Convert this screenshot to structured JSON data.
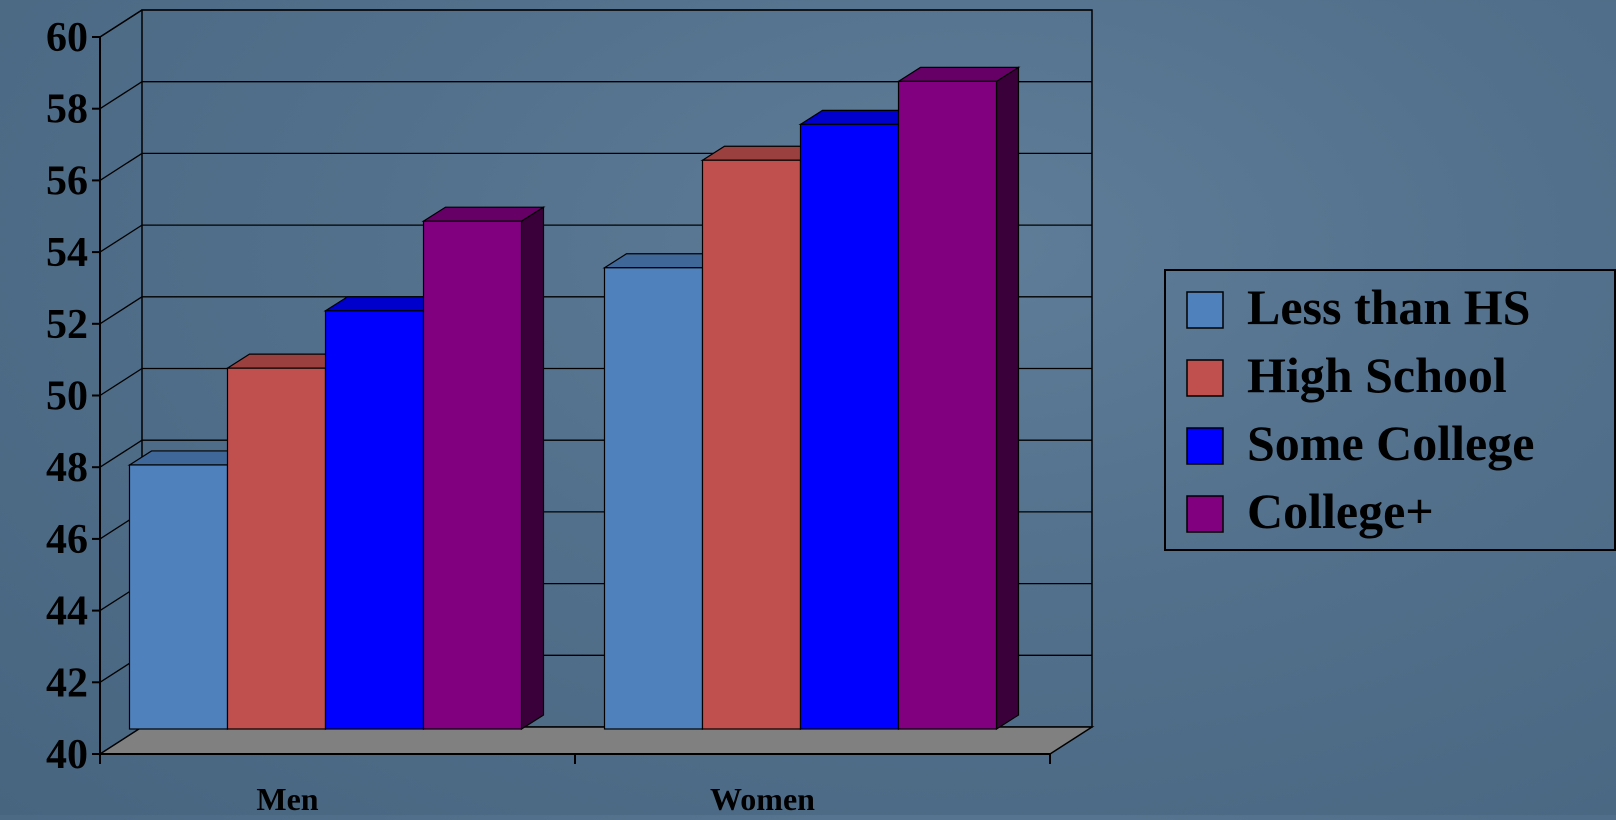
{
  "chart_data": {
    "type": "bar",
    "title": "",
    "xlabel": "",
    "ylabel": "",
    "categories": [
      "Men",
      "Women"
    ],
    "series": [
      {
        "name": "Less than HS",
        "values": [
          47.7,
          53.2
        ],
        "color": "#4f81bd"
      },
      {
        "name": "High School",
        "values": [
          50.4,
          56.2
        ],
        "color": "#c0504d"
      },
      {
        "name": "Some College",
        "values": [
          52.0,
          57.2
        ],
        "color": "#0000ff"
      },
      {
        "name": "College+",
        "values": [
          54.5,
          58.4
        ],
        "color": "#800080"
      }
    ],
    "ylim": [
      40,
      60
    ],
    "yticks": [
      "40",
      "42",
      "44",
      "46",
      "48",
      "50",
      "52",
      "54",
      "56",
      "58",
      "60"
    ],
    "grid": true,
    "legend_position": "right",
    "style": "3d-clustered-column"
  }
}
